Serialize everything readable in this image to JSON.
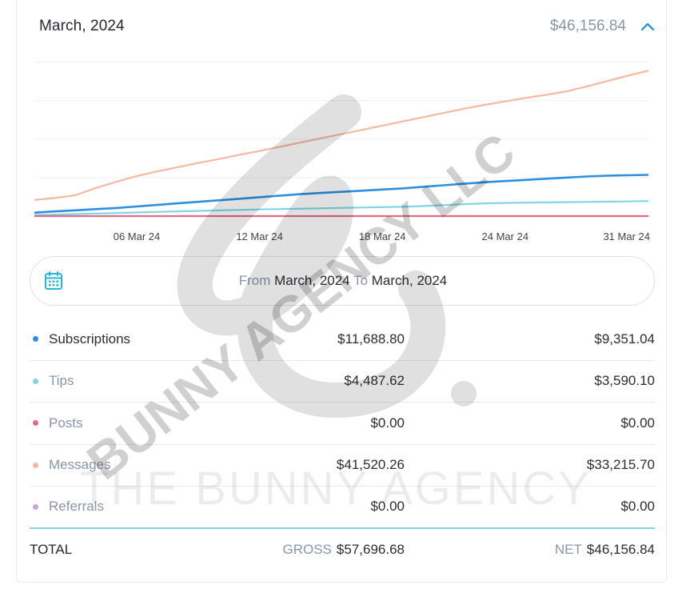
{
  "header": {
    "month": "March, 2024",
    "total": "$46,156.84"
  },
  "icons": {
    "collapse": "chevron-up-icon",
    "calendar": "calendar-icon"
  },
  "colors": {
    "subscriptions": "#2d8fe0",
    "tips": "#7fd6e6",
    "posts": "#e46b86",
    "messages": "#f6b8a0",
    "referrals": "#c7a6e8",
    "accent": "#1e88e5"
  },
  "chart_data": {
    "type": "line",
    "x_tick_labels": [
      "06 Mar 24",
      "12 Mar 24",
      "18 Mar 24",
      "24 Mar 24",
      "31 Mar 24"
    ],
    "x": [
      "01 Mar 24",
      "02 Mar 24",
      "03 Mar 24",
      "04 Mar 24",
      "05 Mar 24",
      "06 Mar 24",
      "07 Mar 24",
      "08 Mar 24",
      "09 Mar 24",
      "10 Mar 24",
      "11 Mar 24",
      "12 Mar 24",
      "13 Mar 24",
      "14 Mar 24",
      "15 Mar 24",
      "16 Mar 24",
      "17 Mar 24",
      "18 Mar 24",
      "19 Mar 24",
      "20 Mar 24",
      "21 Mar 24",
      "22 Mar 24",
      "23 Mar 24",
      "24 Mar 24",
      "25 Mar 24",
      "26 Mar 24",
      "27 Mar 24",
      "28 Mar 24",
      "29 Mar 24",
      "30 Mar 24",
      "31 Mar 24"
    ],
    "series": [
      {
        "key": "messages",
        "values": [
          2100,
          2350,
          2700,
          3650,
          4450,
          5200,
          5800,
          6350,
          6900,
          7400,
          7950,
          8450,
          9000,
          9550,
          10100,
          10650,
          11200,
          11750,
          12300,
          12850,
          13400,
          13950,
          14450,
          14900,
          15350,
          15750,
          16200,
          16850,
          17550,
          18250,
          18900
        ]
      },
      {
        "key": "subscriptions",
        "values": [
          450,
          600,
          750,
          900,
          1050,
          1250,
          1450,
          1650,
          1850,
          2050,
          2250,
          2450,
          2650,
          2850,
          3000,
          3150,
          3300,
          3450,
          3600,
          3800,
          4000,
          4200,
          4400,
          4550,
          4700,
          4850,
          5000,
          5150,
          5250,
          5300,
          5350
        ]
      },
      {
        "key": "tips",
        "values": [
          150,
          200,
          260,
          330,
          400,
          470,
          540,
          610,
          680,
          740,
          800,
          860,
          910,
          960,
          1010,
          1060,
          1110,
          1160,
          1210,
          1300,
          1420,
          1550,
          1650,
          1700,
          1750,
          1780,
          1810,
          1840,
          1870,
          1900,
          1950
        ]
      },
      {
        "key": "posts",
        "values": [
          0,
          0,
          0,
          0,
          0,
          0,
          0,
          0,
          0,
          0,
          0,
          0,
          0,
          0,
          0,
          0,
          0,
          0,
          0,
          0,
          0,
          0,
          0,
          0,
          0,
          0,
          0,
          0,
          0,
          0,
          0
        ]
      }
    ],
    "ylim": [
      0,
      21000
    ],
    "grid": true,
    "legend": "none"
  },
  "date_range": {
    "from_label": "From",
    "from_value": "March, 2024",
    "to_label": "To",
    "to_value": "March, 2024"
  },
  "rows": [
    {
      "label": "Subscriptions",
      "gross": "$11,688.80",
      "net": "$9,351.04"
    },
    {
      "label": "Tips",
      "gross": "$4,487.62",
      "net": "$3,590.10"
    },
    {
      "label": "Posts",
      "gross": "$0.00",
      "net": "$0.00"
    },
    {
      "label": "Messages",
      "gross": "$41,520.26",
      "net": "$33,215.70"
    },
    {
      "label": "Referrals",
      "gross": "$0.00",
      "net": "$0.00"
    }
  ],
  "totals": {
    "label": "TOTAL",
    "gross_label": "GROSS",
    "gross_value": "$57,696.68",
    "net_label": "NET",
    "net_value": "$46,156.84"
  },
  "watermark": {
    "diagonal_text": "BUNNY AGENCY LLC",
    "horizontal_text": "THE BUNNY AGENCY"
  }
}
